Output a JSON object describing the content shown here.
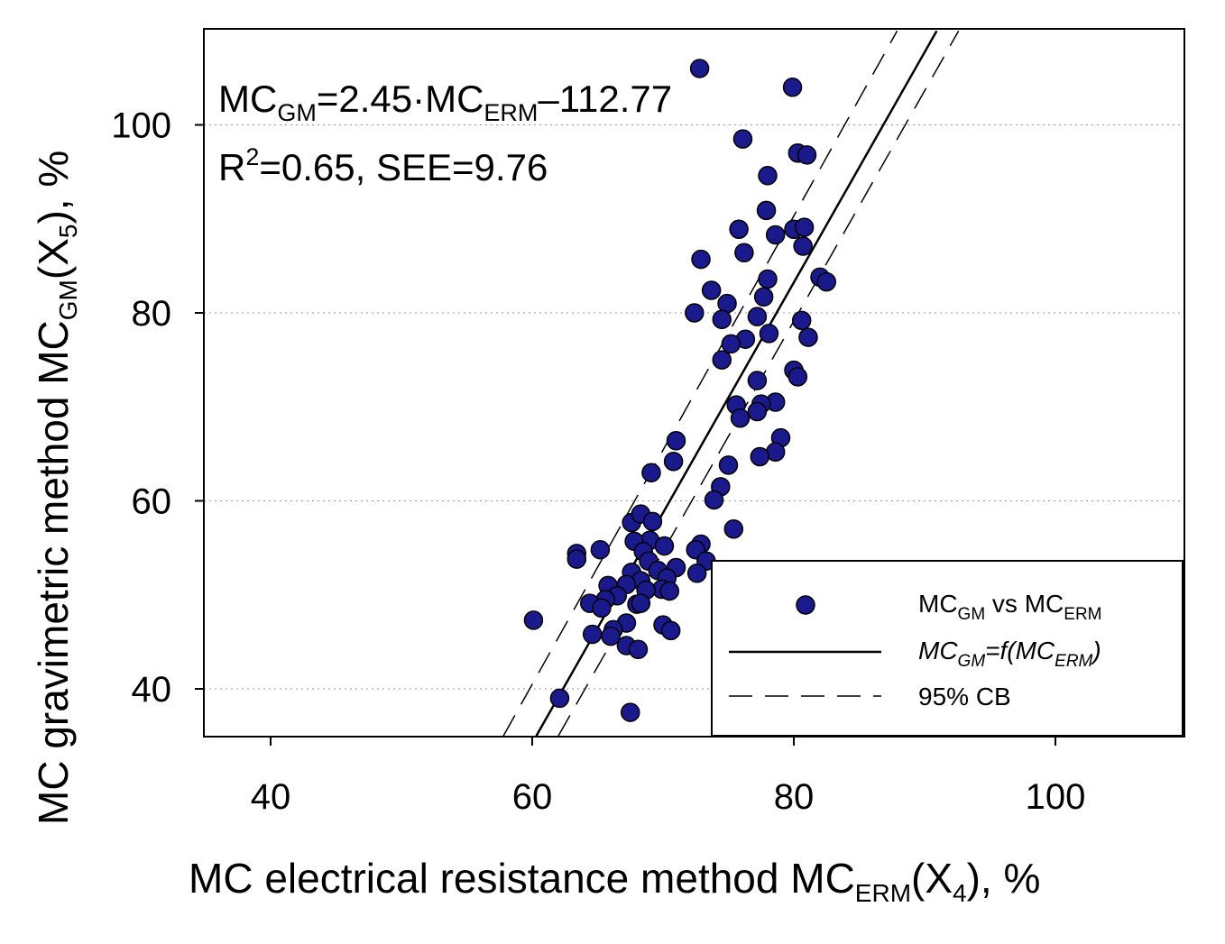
{
  "chart_data": {
    "type": "scatter",
    "xlabel": {
      "main": "MC electrical resistance method MC",
      "sub": "ERM",
      "paren_open": "(X",
      "paren_sub": "4",
      "suffix": "), %"
    },
    "ylabel": {
      "main": "MC gravimetric method MC",
      "sub": "GM",
      "paren_open": "(X",
      "paren_sub": "5",
      "suffix": "), %"
    },
    "xlim": [
      35,
      110
    ],
    "ylim": [
      35,
      110
    ],
    "x_ticks": [
      40,
      60,
      80,
      100
    ],
    "y_ticks": [
      40,
      60,
      80,
      100
    ],
    "grid": {
      "y_dotted": true
    },
    "annotation": {
      "line1": {
        "a": "MC",
        "a_sub": "GM",
        "b": "=2.45·MC",
        "b_sub": "ERM",
        "c": "–112.77"
      },
      "line2": {
        "a": "R",
        "a_sup": "2",
        "b": "=0.65, SEE=9.76"
      }
    },
    "regression": {
      "slope": 2.45,
      "intercept": -112.77
    },
    "confidence_band": {
      "upper": [
        [
          57.8,
          35
        ],
        [
          87.9,
          110
        ]
      ],
      "lower": [
        [
          62.0,
          35
        ],
        [
          92.6,
          110
        ]
      ]
    },
    "legend": {
      "position": "bottom-right",
      "items": [
        {
          "kind": "marker",
          "a": "MC",
          "a_sub": "GM",
          "b": " vs MC",
          "b_sub": "ERM"
        },
        {
          "kind": "solid-line",
          "a": "MC",
          "a_sub": "GM",
          "b": "=f(MC",
          "b_sub": "ERM",
          "c": ")"
        },
        {
          "kind": "dashed-line",
          "label": "95% CB"
        }
      ]
    },
    "colors": {
      "marker_fill": "#1a1a8c",
      "marker_stroke": "#000000",
      "line": "#000000"
    },
    "series": [
      {
        "points": [
          [
            72.8,
            106.0
          ],
          [
            79.9,
            104.0
          ],
          [
            76.1,
            98.5
          ],
          [
            80.3,
            97.0
          ],
          [
            81.0,
            96.8
          ],
          [
            78.0,
            94.6
          ],
          [
            77.9,
            90.9
          ],
          [
            75.8,
            88.9
          ],
          [
            80.0,
            88.9
          ],
          [
            80.8,
            89.1
          ],
          [
            78.6,
            88.3
          ],
          [
            76.2,
            86.4
          ],
          [
            80.7,
            87.1
          ],
          [
            72.9,
            85.7
          ],
          [
            82.0,
            83.8
          ],
          [
            82.5,
            83.3
          ],
          [
            78.0,
            83.6
          ],
          [
            73.7,
            82.4
          ],
          [
            77.7,
            81.7
          ],
          [
            74.9,
            81.0
          ],
          [
            72.4,
            80.0
          ],
          [
            77.2,
            79.6
          ],
          [
            80.6,
            79.2
          ],
          [
            74.5,
            79.3
          ],
          [
            78.1,
            77.8
          ],
          [
            81.1,
            77.4
          ],
          [
            76.3,
            77.2
          ],
          [
            75.2,
            76.7
          ],
          [
            74.5,
            75.0
          ],
          [
            80.0,
            73.9
          ],
          [
            80.3,
            73.2
          ],
          [
            77.2,
            72.8
          ],
          [
            75.6,
            70.2
          ],
          [
            78.6,
            70.5
          ],
          [
            77.5,
            70.3
          ],
          [
            77.2,
            69.5
          ],
          [
            75.9,
            68.8
          ],
          [
            79.0,
            66.7
          ],
          [
            71.0,
            66.4
          ],
          [
            78.6,
            65.2
          ],
          [
            77.4,
            64.7
          ],
          [
            70.8,
            64.2
          ],
          [
            75.0,
            63.8
          ],
          [
            69.1,
            63.0
          ],
          [
            74.4,
            61.5
          ],
          [
            73.9,
            60.1
          ],
          [
            67.6,
            57.7
          ],
          [
            68.3,
            58.6
          ],
          [
            69.2,
            57.8
          ],
          [
            75.4,
            57.0
          ],
          [
            69.0,
            55.8
          ],
          [
            67.8,
            55.7
          ],
          [
            70.1,
            55.2
          ],
          [
            72.9,
            55.4
          ],
          [
            65.2,
            54.8
          ],
          [
            72.5,
            54.8
          ],
          [
            63.4,
            54.4
          ],
          [
            68.5,
            54.6
          ],
          [
            63.4,
            53.8
          ],
          [
            73.3,
            53.6
          ],
          [
            68.9,
            53.6
          ],
          [
            71.0,
            52.9
          ],
          [
            69.6,
            52.6
          ],
          [
            67.6,
            52.4
          ],
          [
            72.6,
            52.3
          ],
          [
            70.3,
            51.8
          ],
          [
            68.3,
            51.5
          ],
          [
            65.8,
            51.0
          ],
          [
            67.2,
            51.1
          ],
          [
            69.9,
            50.6
          ],
          [
            70.5,
            50.4
          ],
          [
            68.7,
            50.5
          ],
          [
            66.5,
            49.9
          ],
          [
            65.6,
            49.5
          ],
          [
            64.4,
            49.1
          ],
          [
            68.0,
            49.0
          ],
          [
            68.3,
            49.1
          ],
          [
            65.3,
            48.6
          ],
          [
            67.2,
            47.0
          ],
          [
            70.0,
            46.8
          ],
          [
            66.2,
            46.3
          ],
          [
            70.6,
            46.2
          ],
          [
            64.6,
            45.8
          ],
          [
            66.0,
            45.6
          ],
          [
            67.2,
            44.6
          ],
          [
            68.1,
            44.2
          ],
          [
            60.1,
            47.3
          ],
          [
            62.1,
            39.0
          ],
          [
            67.5,
            37.5
          ]
        ]
      }
    ]
  }
}
